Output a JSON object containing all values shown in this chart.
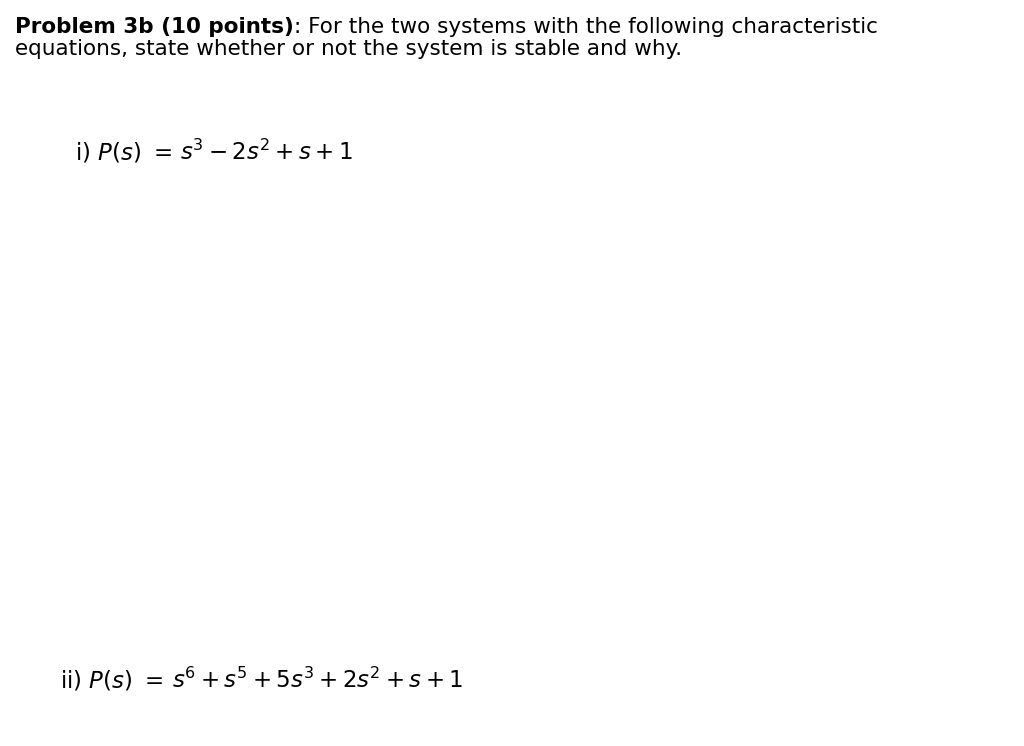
{
  "background_color": "#ffffff",
  "title_bold": "Problem 3b (10 points)",
  "title_colon_normal": ": For the two systems with the following characteristic",
  "title_line2": "equations, state whether or not the system is stable and why.",
  "eq1_full": "i) $P(s)$  $=$  $s^3 - 2s^2 + s + 1$",
  "eq2_full": "ii) $P(s)$  $=$  $s^6 + s^5 + 5s^3 + 2s^2 + s + 1$",
  "figsize": [
    10.24,
    7.46
  ],
  "dpi": 100,
  "text_color": "#000000",
  "font_size_body": 15.5,
  "font_size_eq": 16.5
}
